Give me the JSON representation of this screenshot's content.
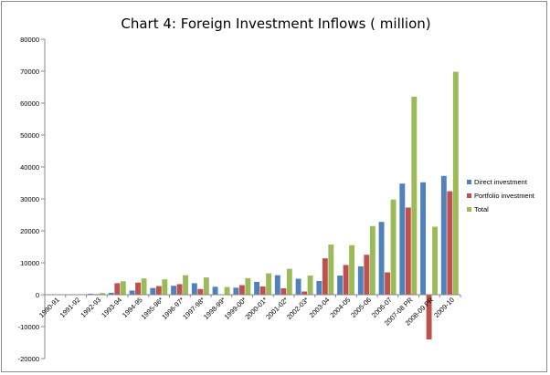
{
  "chart_data": {
    "type": "bar",
    "title": "Chart 4: Foreign Investment Inflows ( million)",
    "xlabel": "",
    "ylabel": "",
    "ylim": [
      -20000,
      80000
    ],
    "yticks": [
      -20000,
      -10000,
      0,
      10000,
      20000,
      30000,
      40000,
      50000,
      60000,
      70000,
      80000
    ],
    "grid": false,
    "legend_position": "right",
    "categories": [
      "1990-91",
      "1991-92",
      "1992-93",
      "1993-94",
      "1994-95",
      "1995-96*",
      "1996-97*",
      "1997-98*",
      "1998-99*",
      "1999-00*",
      "2000-01*",
      "2001-02*",
      "2002-03*",
      "2003-04",
      "2004-05",
      "2005-06",
      "2006-07",
      "2007-08 PR",
      "2008-09 PR",
      "2009-10"
    ],
    "series": [
      {
        "name": "Direct investment",
        "color": "#4f81bd",
        "values": [
          100,
          130,
          320,
          600,
          1300,
          2100,
          2800,
          3600,
          2500,
          2200,
          4000,
          6100,
          5000,
          4300,
          6000,
          8900,
          22800,
          34800,
          35200,
          37200
        ]
      },
      {
        "name": "Portfolio investment",
        "color": "#c0504d",
        "values": [
          0,
          0,
          200,
          3600,
          3800,
          2700,
          3300,
          1800,
          0,
          3000,
          2600,
          2000,
          1000,
          11400,
          9300,
          12500,
          7000,
          27300,
          -14000,
          32400
        ]
      },
      {
        "name": "Total",
        "color": "#9bbb59",
        "values": [
          100,
          130,
          520,
          4200,
          5100,
          4800,
          6100,
          5400,
          2400,
          5200,
          6700,
          8100,
          6000,
          15700,
          15500,
          21500,
          29800,
          62000,
          21300,
          69800
        ]
      }
    ]
  }
}
